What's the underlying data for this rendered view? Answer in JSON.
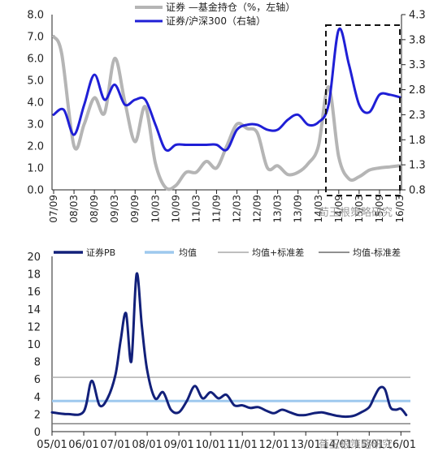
{
  "chart_data": [
    {
      "type": "line",
      "legend": [
        "证券 —基金持仓（%，左轴）",
        "证券/沪深300（右轴）"
      ],
      "legend_placement": "top",
      "x_ticks": [
        "07/09",
        "08/03",
        "08/09",
        "09/03",
        "09/09",
        "10/03",
        "10/09",
        "11/03",
        "11/09",
        "12/03",
        "12/09",
        "13/03",
        "13/09",
        "14/03",
        "14/09",
        "15/03",
        "15/09",
        "16/03"
      ],
      "left_ticks": [
        "0.0",
        "1.0",
        "2.0",
        "3.0",
        "4.0",
        "5.0",
        "6.0",
        "7.0",
        "8.0"
      ],
      "right_ticks": [
        "0.8",
        "1.3",
        "1.8",
        "2.3",
        "2.8",
        "3.3",
        "3.8",
        "4.3"
      ],
      "ylim_left": [
        0,
        8
      ],
      "ylim_right": [
        0.8,
        4.3
      ],
      "colors": {
        "series1": "#b5b5b5",
        "series2": "#1f1fd6"
      },
      "series": [
        {
          "name": "证券 —基金持仓（%，左轴）",
          "axis": "left",
          "x": [
            0,
            0.4,
            1,
            1.5,
            2,
            2.5,
            3,
            3.5,
            4,
            4.5,
            5,
            5.5,
            6,
            6.5,
            7,
            7.5,
            8,
            8.5,
            9,
            9.5,
            10,
            10.5,
            11,
            11.5,
            12,
            12.5,
            13,
            13.5,
            14,
            14.5,
            15,
            15.5,
            16,
            16.5,
            17
          ],
          "values": [
            7.0,
            6.2,
            2.0,
            3.0,
            4.2,
            3.5,
            6.0,
            4.0,
            2.2,
            3.8,
            1.2,
            0.1,
            0.2,
            0.8,
            0.8,
            1.3,
            1.0,
            2.0,
            3.0,
            2.8,
            2.6,
            1.0,
            1.1,
            0.7,
            0.8,
            1.2,
            2.0,
            4.7,
            1.5,
            0.5,
            0.6,
            0.9,
            1.0,
            1.05,
            1.1
          ]
        },
        {
          "name": "证券/沪深300（右轴）",
          "axis": "right",
          "x": [
            0,
            0.5,
            1,
            1.5,
            2,
            2.5,
            3,
            3.5,
            4,
            4.5,
            5,
            5.5,
            6,
            6.5,
            7,
            7.5,
            8,
            8.5,
            9,
            9.5,
            10,
            10.5,
            11,
            11.5,
            12,
            12.5,
            13,
            13.5,
            14,
            14.5,
            15,
            15.5,
            16,
            16.5,
            17
          ],
          "values": [
            2.3,
            2.4,
            1.9,
            2.5,
            3.1,
            2.6,
            2.9,
            2.5,
            2.6,
            2.6,
            2.1,
            1.6,
            1.7,
            1.7,
            1.7,
            1.7,
            1.7,
            1.6,
            2.0,
            2.1,
            2.1,
            2.0,
            2.0,
            2.2,
            2.3,
            2.1,
            2.15,
            2.5,
            4.0,
            3.3,
            2.5,
            2.35,
            2.7,
            2.7,
            2.65
          ]
        }
      ],
      "annotation": "dashed box highlighting 14/09–16/03"
    },
    {
      "type": "line",
      "legend": [
        "证券PB",
        "均值",
        "均值+标准差",
        "均值-标准差"
      ],
      "legend_placement": "top",
      "x_ticks": [
        "05/01",
        "06/01",
        "07/01",
        "08/01",
        "09/01",
        "10/01",
        "11/01",
        "12/01",
        "13/01",
        "14/01",
        "15/01",
        "16/01"
      ],
      "y_ticks": [
        "0",
        "2",
        "4",
        "6",
        "8",
        "10",
        "12",
        "14",
        "16",
        "18",
        "20"
      ],
      "ylim": [
        0,
        20
      ],
      "colors": {
        "pb": "#12207a",
        "mean": "#9ec9ee",
        "upper": "#a9a9a9",
        "lower": "#6b6b6b"
      },
      "mean": 3.5,
      "mean_plus_std": 6.2,
      "mean_minus_std": 0.9,
      "series": [
        {
          "name": "证券PB",
          "x": [
            "05/01",
            "05/07",
            "06/01",
            "06/04",
            "06/07",
            "06/10",
            "07/01",
            "07/03",
            "07/05",
            "07/07",
            "07/09",
            "07/11",
            "08/01",
            "08/04",
            "08/07",
            "08/10",
            "09/01",
            "09/04",
            "09/07",
            "09/10",
            "10/01",
            "10/04",
            "10/07",
            "10/10",
            "11/01",
            "11/04",
            "11/07",
            "11/10",
            "12/01",
            "12/04",
            "12/07",
            "12/10",
            "13/01",
            "13/04",
            "13/07",
            "13/10",
            "14/01",
            "14/04",
            "14/07",
            "14/10",
            "15/01",
            "15/03",
            "15/05",
            "15/07",
            "15/09",
            "15/11",
            "16/01",
            "16/03"
          ],
          "values": [
            2.2,
            2.0,
            2.3,
            5.8,
            3.0,
            3.8,
            6.5,
            10.5,
            13.5,
            8.0,
            18.0,
            12.0,
            7.0,
            3.8,
            4.5,
            2.5,
            2.2,
            3.5,
            5.2,
            3.8,
            4.5,
            3.8,
            4.2,
            3.0,
            3.0,
            2.7,
            2.8,
            2.4,
            2.1,
            2.5,
            2.2,
            1.9,
            1.9,
            2.1,
            2.2,
            2.0,
            1.8,
            1.7,
            1.8,
            2.2,
            2.8,
            4.0,
            5.0,
            4.8,
            2.8,
            2.5,
            2.6,
            1.9
          ]
        }
      ]
    }
  ],
  "watermarks": [
    "荀玉根策略研究",
    "荀玉根策略研究"
  ]
}
